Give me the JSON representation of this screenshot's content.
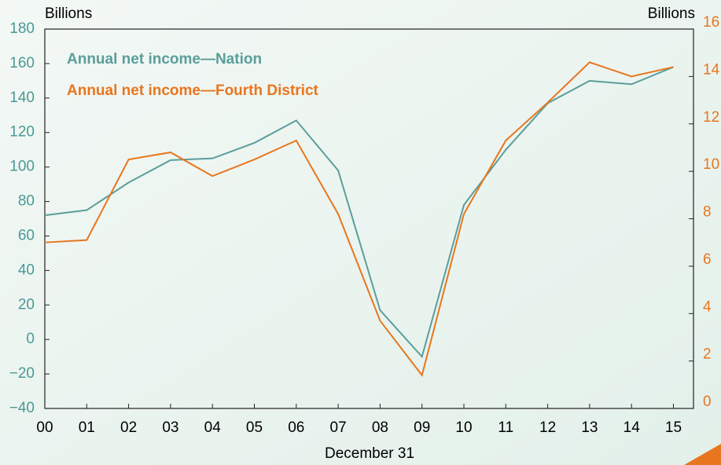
{
  "chart_data": {
    "type": "line",
    "y_label": "Billions",
    "y2_label": "Billions",
    "x_label": "December 31",
    "categories": [
      "00",
      "01",
      "02",
      "03",
      "04",
      "05",
      "06",
      "07",
      "08",
      "09",
      "10",
      "11",
      "12",
      "13",
      "14",
      "15"
    ],
    "series": [
      {
        "name": "Annual net income—Nation",
        "color": "#5a9e9a",
        "values": [
          72,
          75,
          91,
          104,
          105,
          114,
          127,
          98,
          17,
          -10,
          78,
          110,
          137,
          150,
          148,
          158
        ]
      },
      {
        "name": "Annual net income—Fourth District",
        "color": "#e8761e",
        "axis": "y2",
        "values": [
          7.0,
          7.1,
          10.5,
          10.8,
          9.8,
          10.5,
          11.3,
          8.2,
          3.7,
          1.4,
          8.2,
          11.3,
          12.9,
          14.6,
          14.0,
          14.4
        ]
      }
    ],
    "ylim": [
      -40,
      180
    ],
    "yticks": [
      {
        "value": -40,
        "label": "−40"
      },
      {
        "value": -20,
        "label": "−20"
      },
      0,
      20,
      40,
      60,
      80,
      100,
      120,
      140,
      160,
      180
    ],
    "y2lim": [
      0,
      16
    ],
    "y2ticks": [
      0,
      2,
      4,
      6,
      8,
      10,
      12,
      14,
      16
    ],
    "y_color": "#4a9a96",
    "y2_color": "#e8761e"
  }
}
